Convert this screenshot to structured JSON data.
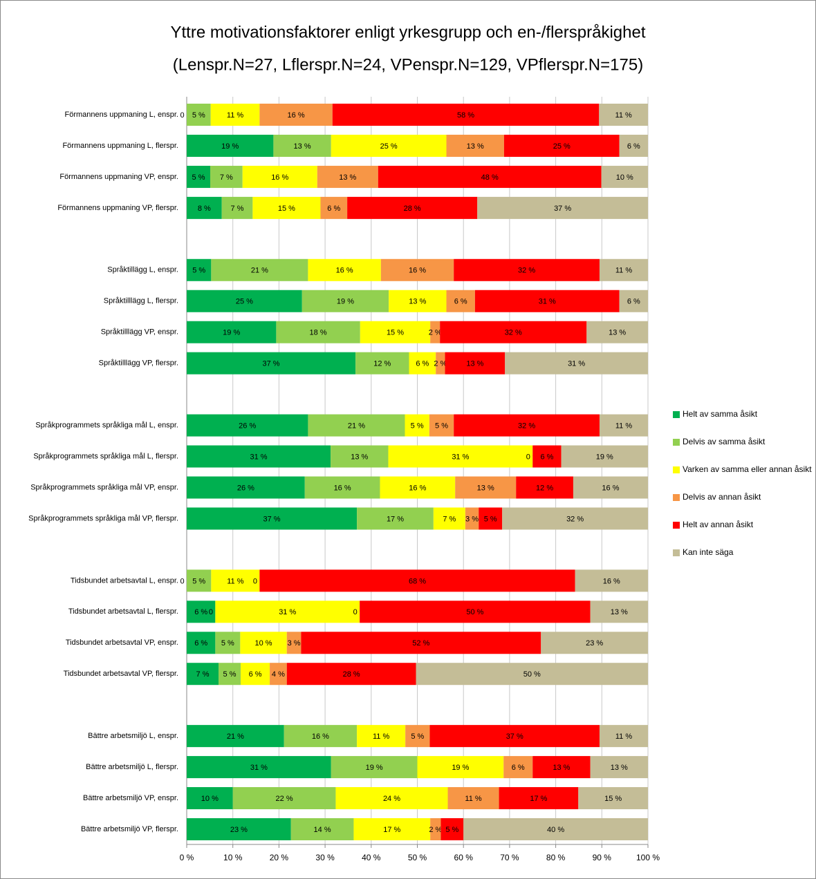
{
  "chart_data": {
    "type": "stacked-barh",
    "title": "Yttre motivationsfaktorer enligt yrkesgrupp och en-/flerspråkighet",
    "subtitle": "(Lenspr.N=27, Lflerspr.N=24, VPenspr.N=129, VPflerspr.N=175)",
    "categories": [
      "Förmannens uppmaning L, enspr.",
      "Förmannens uppmaning L, flerspr.",
      "Förmannens uppmaning VP, enspr.",
      "Förmannens uppmaning VP, flerspr.",
      null,
      "Språktillägg L, enspr.",
      "Språktilllägg L, flerspr.",
      "Språktilllägg VP, enspr.",
      "Språktilllägg VP, flerspr.",
      null,
      "Språkprogrammets språkliga mål L, enspr.",
      "Språkprogrammets språkliga mål L, flerspr.",
      "Språkprogrammets språkliga mål VP, enspr.",
      "Språkprogrammets språkliga mål VP, flerspr.",
      null,
      "Tidsbundet arbetsavtal L, enspr.",
      "Tidsbundet arbetsavtal L, flerspr.",
      "Tidsbundet arbetsavtal VP, enspr.",
      "Tidsbundet arbetsavtal VP, flerspr.",
      null,
      "Bättre arbetsmiljö L, enspr.",
      "Bättre arbetsmiljö L, flerspr.",
      "Bättre arbetsmiljö VP, enspr.",
      "Bättre arbetsmiljö VP, flerspr."
    ],
    "series": [
      {
        "name": "Helt av samma åsikt",
        "color": "#00b050",
        "values": [
          0,
          18.8,
          5.1,
          7.6,
          null,
          5.3,
          25,
          19.4,
          36.6,
          null,
          26.3,
          31.2,
          25.6,
          36.9,
          null,
          0,
          6.2,
          6.2,
          6.9,
          null,
          21.1,
          31.3,
          10.0,
          22.6
        ],
        "value_labels": [
          "0 %",
          "19 %",
          "5 %",
          "8 %",
          null,
          "5 %",
          "25 %",
          "19 %",
          "37 %",
          null,
          "26 %",
          "31 %",
          "26 %",
          "37 %",
          null,
          "0 %",
          "6 %",
          "6 %",
          "7 %",
          null,
          "21 %",
          "31 %",
          "10 %",
          "23 %"
        ]
      },
      {
        "name": "Delvis av samma åsikt",
        "color": "#92d050",
        "values": [
          5.2,
          12.5,
          7.0,
          6.7,
          null,
          21.0,
          18.8,
          18.2,
          11.6,
          null,
          21.0,
          12.5,
          16.3,
          16.6,
          null,
          5.3,
          0,
          5.4,
          4.8,
          null,
          15.8,
          18.7,
          22.3,
          13.6
        ],
        "value_labels": [
          "5 %",
          "13 %",
          "7 %",
          "7 %",
          null,
          "21 %",
          "19 %",
          "18 %",
          "12 %",
          null,
          "21 %",
          "13 %",
          "16 %",
          "17 %",
          null,
          "5 %",
          "0 %",
          "5 %",
          "5 %",
          null,
          "16 %",
          "19 %",
          "22 %",
          "14 %"
        ]
      },
      {
        "name": "Varken av samma eller annan åsikt",
        "color": "#ffff00",
        "values": [
          10.6,
          25,
          16.2,
          14.7,
          null,
          15.8,
          12.5,
          15.2,
          5.8,
          null,
          5.3,
          31.3,
          16.3,
          6.9,
          null,
          10.5,
          31.3,
          10.1,
          6.3,
          null,
          10.5,
          18.7,
          24.3,
          16.6
        ],
        "value_labels": [
          "11 %",
          "25 %",
          "16 %",
          "15 %",
          null,
          "16 %",
          "13 %",
          "15 %",
          "6 %",
          null,
          "5 %",
          "31 %",
          "16 %",
          "7 %",
          null,
          "11 %",
          "31 %",
          "10 %",
          "6 %",
          null,
          "11 %",
          "19 %",
          "24 %",
          "17 %"
        ]
      },
      {
        "name": "Delvis av annan åsikt",
        "color": "#f79646",
        "values": [
          15.8,
          12.5,
          13.2,
          5.8,
          null,
          15.8,
          6.2,
          2.1,
          2.0,
          null,
          5.3,
          0,
          13.2,
          2.9,
          null,
          0,
          0,
          3.1,
          3.7,
          null,
          5.3,
          6.3,
          11.1,
          2.3
        ],
        "value_labels": [
          "16 %",
          "13 %",
          "13 %",
          "6 %",
          null,
          "16 %",
          "6 %",
          "2 %",
          "2 %",
          null,
          "5 %",
          "0 %",
          "13 %",
          "3 %",
          null,
          "0 %",
          "0 %",
          "3 %",
          "4 %",
          null,
          "5 %",
          "6 %",
          "11 %",
          "2 %"
        ]
      },
      {
        "name": "Helt av annan åsikt",
        "color": "#ff0000",
        "values": [
          57.8,
          25,
          48.4,
          28.2,
          null,
          31.6,
          31.3,
          31.8,
          13.0,
          null,
          31.6,
          6.2,
          12.4,
          5.1,
          null,
          68.4,
          50,
          52.0,
          28.0,
          null,
          36.8,
          12.5,
          17.2,
          4.9
        ],
        "value_labels": [
          "58 %",
          "25 %",
          "48 %",
          "28 %",
          null,
          "32 %",
          "31 %",
          "32 %",
          "13 %",
          null,
          "32 %",
          "6 %",
          "12 %",
          "5 %",
          null,
          "68 %",
          "50 %",
          "52 %",
          "28 %",
          null,
          "37 %",
          "13 %",
          "17 %",
          "5 %"
        ]
      },
      {
        "name": "Kan inte säga",
        "color": "#c4bd97",
        "values": [
          10.6,
          6.2,
          10.1,
          37.0,
          null,
          10.5,
          6.2,
          13.3,
          31.0,
          null,
          10.5,
          18.8,
          16.2,
          31.6,
          null,
          15.8,
          12.5,
          23.2,
          50.3,
          null,
          10.5,
          12.5,
          15.1,
          40.0
        ],
        "value_labels": [
          "11 %",
          "6 %",
          "10 %",
          "37 %",
          null,
          "11 %",
          "6 %",
          "13 %",
          "31 %",
          null,
          "11 %",
          "19 %",
          "16 %",
          "32 %",
          null,
          "16 %",
          "13 %",
          "23 %",
          "50 %",
          null,
          "11 %",
          "13 %",
          "15 %",
          "40 %"
        ]
      }
    ],
    "xlim": [
      0,
      100
    ],
    "xticks": [
      {
        "value": 0,
        "label": "0 %"
      },
      {
        "value": 10,
        "label": "10 %"
      },
      {
        "value": 20,
        "label": "20 %"
      },
      {
        "value": 30,
        "label": "30 %"
      },
      {
        "value": 40,
        "label": "40 %"
      },
      {
        "value": 50,
        "label": "50 %"
      },
      {
        "value": 60,
        "label": "60 %"
      },
      {
        "value": 70,
        "label": "70 %"
      },
      {
        "value": 80,
        "label": "80 %"
      },
      {
        "value": 90,
        "label": "90 %"
      },
      {
        "value": 100,
        "label": "100 %"
      }
    ],
    "grid": true,
    "legend": "right"
  }
}
